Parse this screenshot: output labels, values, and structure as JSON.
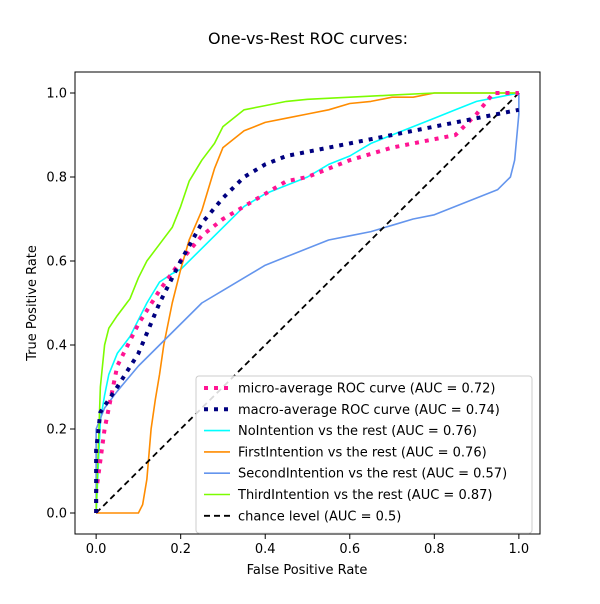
{
  "chart_data": {
    "type": "line",
    "title": "One-vs-Rest ROC curves:",
    "xlabel": "False Positive Rate",
    "ylabel": "True Positive Rate",
    "xlim": [
      -0.05,
      1.05
    ],
    "ylim": [
      -0.05,
      1.05
    ],
    "xticks": [
      0.0,
      0.2,
      0.4,
      0.6,
      0.8,
      1.0
    ],
    "xtick_labels": [
      "0.0",
      "0.2",
      "0.4",
      "0.6",
      "0.8",
      "1.0"
    ],
    "yticks": [
      0.0,
      0.2,
      0.4,
      0.6,
      0.8,
      1.0
    ],
    "ytick_labels": [
      "0.0",
      "0.2",
      "0.4",
      "0.6",
      "0.8",
      "1.0"
    ],
    "grid": false,
    "legend_position": "lower-right",
    "series": [
      {
        "name": "micro-average ROC curve (AUC = 0.72)",
        "color": "#ff1493",
        "style": "dotted-thick",
        "x": [
          0.0,
          0.0,
          0.02,
          0.05,
          0.1,
          0.15,
          0.2,
          0.25,
          0.3,
          0.35,
          0.4,
          0.45,
          0.5,
          0.55,
          0.6,
          0.65,
          0.7,
          0.75,
          0.8,
          0.85,
          0.9,
          0.94,
          0.97,
          1.0
        ],
        "y": [
          0.0,
          0.05,
          0.2,
          0.35,
          0.45,
          0.53,
          0.6,
          0.66,
          0.7,
          0.73,
          0.76,
          0.79,
          0.8,
          0.82,
          0.84,
          0.855,
          0.87,
          0.88,
          0.89,
          0.9,
          0.95,
          1.0,
          1.0,
          1.0
        ]
      },
      {
        "name": "macro-average ROC curve (AUC = 0.74)",
        "color": "#000080",
        "style": "dotted-thick",
        "x": [
          0.0,
          0.0,
          0.01,
          0.05,
          0.1,
          0.15,
          0.2,
          0.25,
          0.3,
          0.35,
          0.4,
          0.45,
          0.5,
          0.55,
          0.6,
          0.65,
          0.7,
          0.75,
          0.8,
          0.85,
          0.9,
          0.95,
          1.0
        ],
        "y": [
          0.0,
          0.15,
          0.24,
          0.3,
          0.38,
          0.5,
          0.6,
          0.69,
          0.75,
          0.8,
          0.83,
          0.85,
          0.86,
          0.87,
          0.88,
          0.89,
          0.9,
          0.91,
          0.92,
          0.93,
          0.94,
          0.95,
          0.96
        ]
      },
      {
        "name": "NoIntention vs the rest (AUC = 0.76)",
        "color": "#00ffff",
        "style": "solid",
        "x": [
          0.0,
          0.01,
          0.02,
          0.03,
          0.05,
          0.08,
          0.1,
          0.12,
          0.15,
          0.18,
          0.2,
          0.25,
          0.3,
          0.35,
          0.4,
          0.45,
          0.5,
          0.55,
          0.6,
          0.65,
          0.7,
          0.75,
          0.8,
          0.85,
          0.9,
          0.95,
          1.0
        ],
        "y": [
          0.0,
          0.22,
          0.28,
          0.33,
          0.38,
          0.42,
          0.46,
          0.5,
          0.55,
          0.57,
          0.58,
          0.63,
          0.68,
          0.73,
          0.76,
          0.78,
          0.8,
          0.83,
          0.85,
          0.88,
          0.9,
          0.92,
          0.94,
          0.96,
          0.98,
          0.99,
          1.0
        ]
      },
      {
        "name": "FirstIntention vs the rest (AUC = 0.76)",
        "color": "#ff8c00",
        "style": "solid",
        "x": [
          0.0,
          0.05,
          0.1,
          0.11,
          0.12,
          0.13,
          0.14,
          0.15,
          0.16,
          0.18,
          0.2,
          0.22,
          0.25,
          0.28,
          0.3,
          0.35,
          0.4,
          0.45,
          0.5,
          0.55,
          0.6,
          0.65,
          0.7,
          0.75,
          0.8,
          0.85,
          0.9,
          1.0
        ],
        "y": [
          0.0,
          0.0,
          0.0,
          0.02,
          0.08,
          0.2,
          0.27,
          0.33,
          0.4,
          0.5,
          0.58,
          0.65,
          0.72,
          0.82,
          0.87,
          0.91,
          0.93,
          0.94,
          0.95,
          0.96,
          0.975,
          0.98,
          0.99,
          0.99,
          1.0,
          1.0,
          1.0,
          1.0
        ]
      },
      {
        "name": "SecondIntention vs the rest (AUC = 0.57)",
        "color": "#6495ed",
        "style": "solid",
        "x": [
          0.0,
          0.0,
          0.02,
          0.05,
          0.1,
          0.15,
          0.2,
          0.25,
          0.3,
          0.35,
          0.4,
          0.45,
          0.5,
          0.55,
          0.6,
          0.65,
          0.7,
          0.75,
          0.8,
          0.85,
          0.9,
          0.95,
          0.98,
          0.99,
          1.0,
          1.0
        ],
        "y": [
          0.0,
          0.2,
          0.25,
          0.29,
          0.35,
          0.4,
          0.45,
          0.5,
          0.53,
          0.56,
          0.59,
          0.61,
          0.63,
          0.65,
          0.66,
          0.67,
          0.685,
          0.7,
          0.71,
          0.73,
          0.75,
          0.77,
          0.8,
          0.84,
          0.95,
          1.0
        ]
      },
      {
        "name": "ThirdIntention vs the rest (AUC = 0.87)",
        "color": "#7cfc00",
        "style": "solid",
        "x": [
          0.0,
          0.005,
          0.01,
          0.02,
          0.03,
          0.05,
          0.08,
          0.1,
          0.12,
          0.15,
          0.18,
          0.2,
          0.22,
          0.25,
          0.28,
          0.3,
          0.35,
          0.4,
          0.45,
          0.5,
          0.6,
          0.7,
          0.8,
          0.9,
          1.0
        ],
        "y": [
          0.0,
          0.15,
          0.3,
          0.4,
          0.44,
          0.47,
          0.51,
          0.56,
          0.6,
          0.64,
          0.68,
          0.73,
          0.79,
          0.84,
          0.88,
          0.92,
          0.96,
          0.97,
          0.98,
          0.985,
          0.99,
          0.995,
          1.0,
          1.0,
          1.0
        ]
      },
      {
        "name": "chance level (AUC = 0.5)",
        "color": "#000000",
        "style": "dashed",
        "x": [
          0.0,
          1.0
        ],
        "y": [
          0.0,
          1.0
        ]
      }
    ]
  }
}
